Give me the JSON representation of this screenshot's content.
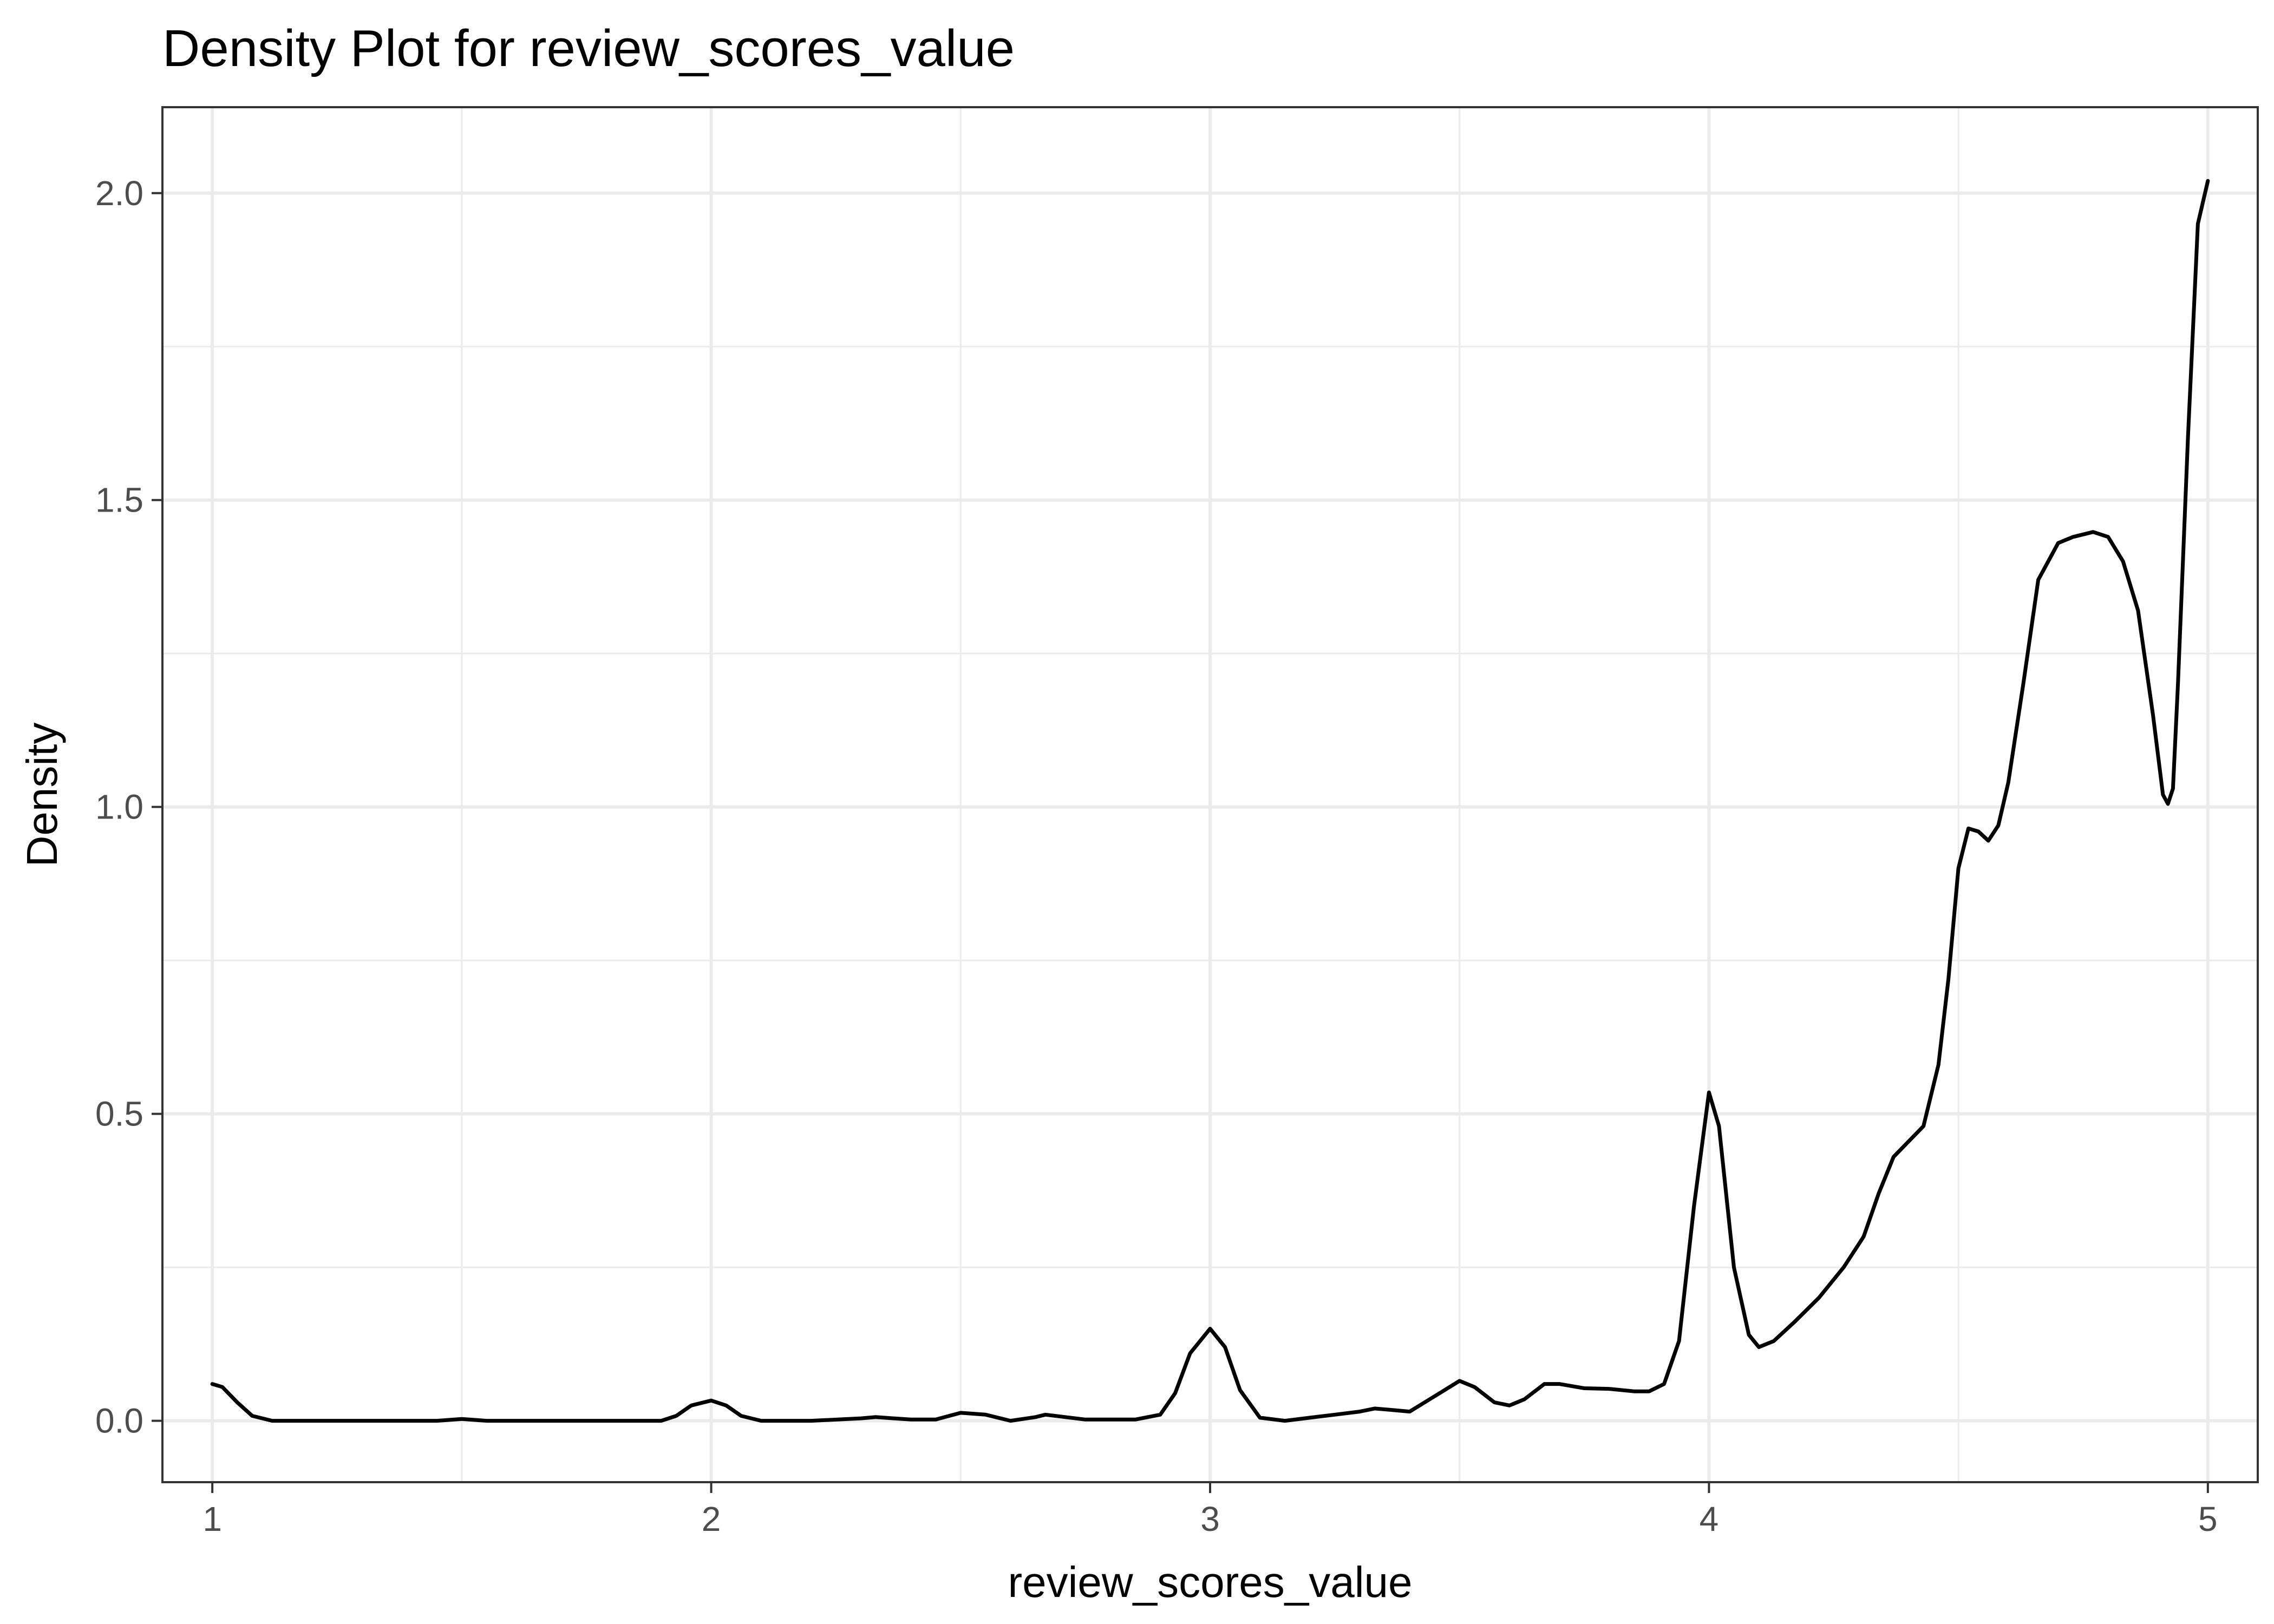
{
  "chart_data": {
    "type": "line",
    "title": "Density Plot for  review_scores_value",
    "xlabel": "review_scores_value",
    "ylabel": "Density",
    "xlim": [
      0.9,
      5.1
    ],
    "ylim": [
      -0.1,
      2.14
    ],
    "x_ticks": [
      1,
      2,
      3,
      4,
      5
    ],
    "x_tick_labels": [
      "1",
      "2",
      "3",
      "4",
      "5"
    ],
    "y_ticks": [
      0.0,
      0.5,
      1.0,
      1.5,
      2.0
    ],
    "y_tick_labels": [
      "0.0",
      "0.5",
      "1.0",
      "1.5",
      "2.0"
    ],
    "x_minor": [
      1.5,
      2.5,
      3.5,
      4.5
    ],
    "y_minor": [
      0.25,
      0.75,
      1.25,
      1.75
    ],
    "grid": true,
    "series": [
      {
        "color": "#000000",
        "x": [
          1.0,
          1.02,
          1.05,
          1.08,
          1.12,
          1.2,
          1.3,
          1.4,
          1.45,
          1.5,
          1.55,
          1.6,
          1.7,
          1.8,
          1.9,
          1.93,
          1.96,
          2.0,
          2.03,
          2.06,
          2.1,
          2.2,
          2.3,
          2.33,
          2.4,
          2.45,
          2.5,
          2.55,
          2.6,
          2.65,
          2.67,
          2.7,
          2.75,
          2.8,
          2.85,
          2.9,
          2.93,
          2.96,
          3.0,
          3.03,
          3.06,
          3.1,
          3.15,
          3.2,
          3.25,
          3.3,
          3.33,
          3.36,
          3.4,
          3.45,
          3.5,
          3.53,
          3.57,
          3.6,
          3.63,
          3.67,
          3.7,
          3.75,
          3.8,
          3.85,
          3.88,
          3.91,
          3.94,
          3.97,
          4.0,
          4.02,
          4.05,
          4.08,
          4.1,
          4.13,
          4.17,
          4.22,
          4.27,
          4.31,
          4.34,
          4.37,
          4.4,
          4.43,
          4.46,
          4.48,
          4.5,
          4.52,
          4.54,
          4.56,
          4.58,
          4.6,
          4.63,
          4.66,
          4.7,
          4.73,
          4.77,
          4.8,
          4.83,
          4.86,
          4.89,
          4.91,
          4.92,
          4.93,
          4.94,
          4.96,
          4.98,
          5.0
        ],
        "y": [
          0.06,
          0.055,
          0.03,
          0.008,
          0.0,
          0.0,
          0.0,
          0.0,
          0.0,
          0.003,
          0.0,
          0.0,
          0.0,
          0.0,
          0.0,
          0.008,
          0.025,
          0.033,
          0.025,
          0.008,
          0.0,
          0.0,
          0.004,
          0.006,
          0.002,
          0.002,
          0.013,
          0.01,
          0.0,
          0.006,
          0.01,
          0.007,
          0.002,
          0.002,
          0.002,
          0.01,
          0.045,
          0.11,
          0.15,
          0.12,
          0.05,
          0.005,
          0.0,
          0.005,
          0.01,
          0.015,
          0.02,
          0.018,
          0.015,
          0.04,
          0.065,
          0.055,
          0.03,
          0.025,
          0.035,
          0.06,
          0.06,
          0.053,
          0.052,
          0.048,
          0.048,
          0.06,
          0.13,
          0.35,
          0.535,
          0.48,
          0.25,
          0.14,
          0.12,
          0.13,
          0.16,
          0.2,
          0.25,
          0.3,
          0.37,
          0.43,
          0.455,
          0.48,
          0.58,
          0.72,
          0.9,
          0.965,
          0.96,
          0.945,
          0.97,
          1.04,
          1.2,
          1.37,
          1.43,
          1.44,
          1.448,
          1.44,
          1.4,
          1.32,
          1.15,
          1.02,
          1.005,
          1.03,
          1.2,
          1.6,
          1.95,
          2.02
        ]
      }
    ]
  }
}
